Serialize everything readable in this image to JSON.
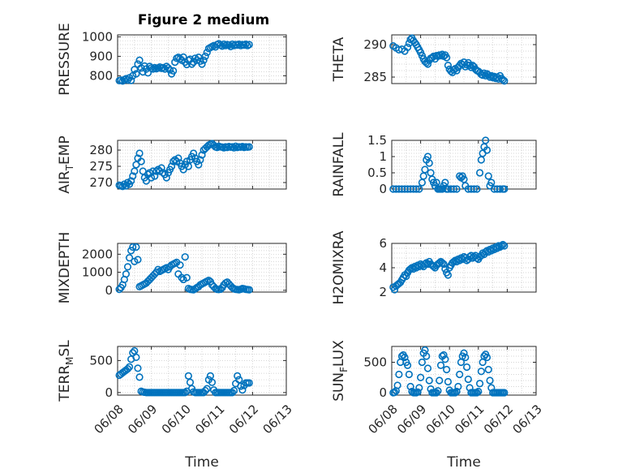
{
  "figure_title": "Figure 2 medium",
  "x_axis_label": "Time",
  "colors": {
    "marker": "#0072BD",
    "axis": "#262626",
    "grid": "#c8c8c8"
  },
  "chart_data": [
    {
      "id": "pressure",
      "type": "scatter",
      "ylabel": "PRESSURE",
      "ylabel_sub": "",
      "ylim": [
        760,
        1010
      ],
      "yticks": [
        800,
        900,
        1000
      ],
      "xticks": [],
      "xlabel": "",
      "x": [
        0.05,
        0.1,
        0.15,
        0.2,
        0.25,
        0.3,
        0.35,
        0.4,
        0.45,
        0.5,
        0.55,
        0.6,
        0.65,
        0.7,
        0.75,
        0.8,
        0.85,
        0.9,
        0.95,
        1.0,
        1.05,
        1.1,
        1.15,
        1.2,
        1.25,
        1.3,
        1.35,
        1.4,
        1.45,
        1.5,
        1.55,
        1.6,
        1.65,
        1.7,
        1.75,
        1.8,
        1.85,
        1.9,
        1.95,
        2.0,
        2.05,
        2.1,
        2.15,
        2.2,
        2.25,
        2.3,
        2.35,
        2.4,
        2.45,
        2.5,
        2.55,
        2.6,
        2.65,
        2.7,
        2.75,
        2.8,
        2.85,
        2.9,
        2.95,
        3.0,
        3.05,
        3.1,
        3.15,
        3.2,
        3.25,
        3.3,
        3.35,
        3.4,
        3.45,
        3.5,
        3.55,
        3.6,
        3.65,
        3.7,
        3.75,
        3.8,
        3.85,
        3.9
      ],
      "y": [
        775,
        778,
        773,
        780,
        785,
        778,
        790,
        776,
        800,
        832,
        810,
        860,
        880,
        840,
        820,
        850,
        835,
        815,
        848,
        840,
        835,
        842,
        836,
        840,
        845,
        838,
        842,
        835,
        848,
        840,
        830,
        810,
        825,
        870,
        890,
        895,
        888,
        880,
        896,
        870,
        858,
        880,
        885,
        860,
        870,
        890,
        880,
        895,
        875,
        860,
        880,
        900,
        920,
        940,
        945,
        950,
        955,
        948,
        960,
        965,
        958,
        952,
        962,
        955,
        960,
        958,
        950,
        962,
        955,
        960,
        958,
        962,
        955,
        960,
        958,
        962,
        955,
        960
      ]
    },
    {
      "id": "theta",
      "type": "scatter",
      "ylabel": "THETA",
      "ylabel_sub": "",
      "ylim": [
        284,
        291.5
      ],
      "yticks": [
        285,
        290
      ],
      "xticks": [],
      "xlabel": "",
      "x": [
        0.05,
        0.15,
        0.25,
        0.35,
        0.45,
        0.55,
        0.6,
        0.65,
        0.7,
        0.75,
        0.8,
        0.85,
        0.9,
        0.95,
        1.0,
        1.05,
        1.1,
        1.15,
        1.2,
        1.25,
        1.3,
        1.35,
        1.4,
        1.45,
        1.5,
        1.55,
        1.6,
        1.65,
        1.7,
        1.75,
        1.8,
        1.85,
        1.9,
        1.95,
        2.0,
        2.05,
        2.1,
        2.15,
        2.2,
        2.25,
        2.3,
        2.35,
        2.4,
        2.45,
        2.5,
        2.55,
        2.6,
        2.65,
        2.7,
        2.75,
        2.8,
        2.85,
        2.9,
        2.95,
        3.0,
        3.05,
        3.1,
        3.15,
        3.2,
        3.25,
        3.3,
        3.35,
        3.4,
        3.45,
        3.5,
        3.55,
        3.6,
        3.65,
        3.7,
        3.75,
        3.8,
        3.85,
        3.9
      ],
      "y": [
        289.8,
        289.5,
        289.2,
        289.3,
        289.0,
        289.6,
        290.2,
        290.8,
        291.0,
        290.6,
        290.3,
        290.0,
        289.6,
        289.2,
        288.8,
        288.3,
        287.8,
        287.4,
        287.2,
        287.0,
        287.6,
        287.9,
        288.0,
        288.2,
        287.8,
        288.3,
        288.2,
        288.4,
        288.3,
        288.5,
        288.2,
        288.4,
        288.0,
        286.8,
        286.2,
        285.9,
        285.7,
        286.1,
        286.3,
        286.0,
        286.5,
        286.8,
        287.1,
        286.9,
        287.3,
        286.6,
        286.9,
        287.2,
        286.8,
        286.5,
        286.8,
        286.6,
        286.2,
        286.0,
        285.9,
        285.7,
        285.4,
        285.3,
        285.6,
        285.2,
        285.5,
        285.3,
        285.0,
        285.2,
        284.9,
        285.1,
        284.8,
        285.0,
        284.7,
        285.2,
        284.8,
        284.6,
        284.4
      ]
    },
    {
      "id": "air_temp",
      "type": "scatter",
      "ylabel": "AIR",
      "ylabel_sub": "T",
      "ylabel_after": "EMP",
      "ylim": [
        268,
        283
      ],
      "yticks": [
        270,
        275,
        280
      ],
      "xticks": [],
      "xlabel": "",
      "x": [
        0.05,
        0.1,
        0.15,
        0.2,
        0.25,
        0.3,
        0.35,
        0.4,
        0.45,
        0.5,
        0.55,
        0.6,
        0.65,
        0.7,
        0.75,
        0.8,
        0.85,
        0.9,
        0.95,
        1.0,
        1.05,
        1.1,
        1.15,
        1.2,
        1.25,
        1.3,
        1.35,
        1.4,
        1.45,
        1.5,
        1.55,
        1.6,
        1.65,
        1.7,
        1.75,
        1.8,
        1.85,
        1.9,
        1.95,
        2.0,
        2.05,
        2.1,
        2.15,
        2.2,
        2.25,
        2.3,
        2.35,
        2.4,
        2.45,
        2.5,
        2.55,
        2.6,
        2.65,
        2.7,
        2.75,
        2.8,
        2.85,
        2.9,
        2.95,
        3.0,
        3.05,
        3.1,
        3.15,
        3.2,
        3.25,
        3.3,
        3.35,
        3.4,
        3.45,
        3.5,
        3.55,
        3.6,
        3.65,
        3.7,
        3.75,
        3.8,
        3.85,
        3.9
      ],
      "y": [
        269.2,
        269.0,
        268.8,
        269.5,
        269.0,
        270.0,
        269.5,
        270.5,
        272.0,
        273.5,
        275.5,
        277.5,
        279.0,
        276.5,
        273.5,
        271.5,
        270.5,
        272.5,
        273.0,
        271.5,
        273.5,
        272.0,
        273.5,
        274.0,
        273.5,
        274.5,
        273.0,
        272.5,
        271.5,
        273.0,
        274.0,
        275.0,
        276.5,
        277.0,
        276.5,
        277.5,
        276.0,
        275.0,
        274.0,
        275.5,
        276.5,
        275.0,
        277.0,
        278.0,
        279.0,
        277.5,
        276.5,
        275.5,
        277.0,
        278.5,
        280.0,
        280.5,
        281.0,
        281.5,
        281.8,
        282.0,
        281.5,
        281.0,
        280.8,
        281.2,
        281.0,
        280.9,
        280.7,
        281.0,
        280.8,
        281.1,
        280.9,
        281.0,
        280.7,
        281.2,
        280.8,
        281.0,
        280.9,
        281.1,
        280.8,
        281.0,
        280.9,
        281.0
      ]
    },
    {
      "id": "rainfall",
      "type": "scatter",
      "ylabel": "RAINFALL",
      "ylabel_sub": "",
      "ylim": [
        0,
        1.5
      ],
      "yticks": [
        0,
        0.5,
        1,
        1.5
      ],
      "ytick_labels": [
        "0",
        "0.5",
        "1",
        "1.5"
      ],
      "xticks": [],
      "xlabel": "",
      "x": [
        0.05,
        0.15,
        0.25,
        0.35,
        0.45,
        0.55,
        0.65,
        0.75,
        0.85,
        0.95,
        1.05,
        1.1,
        1.15,
        1.2,
        1.25,
        1.3,
        1.35,
        1.4,
        1.45,
        1.5,
        1.55,
        1.6,
        1.65,
        1.7,
        1.75,
        1.8,
        1.85,
        1.9,
        1.95,
        2.05,
        2.15,
        2.25,
        2.35,
        2.4,
        2.45,
        2.5,
        2.55,
        2.65,
        2.75,
        2.85,
        2.95,
        3.05,
        3.1,
        3.15,
        3.2,
        3.25,
        3.3,
        3.35,
        3.4,
        3.45,
        3.55,
        3.65,
        3.75,
        3.85,
        3.9
      ],
      "y": [
        0,
        0,
        0,
        0,
        0,
        0,
        0,
        0,
        0,
        0,
        0.2,
        0.4,
        0.6,
        0.9,
        1.0,
        0.8,
        0.5,
        0.3,
        0.2,
        0.1,
        0.2,
        0,
        0,
        0,
        0,
        0.1,
        0.2,
        0,
        0,
        0,
        0,
        0,
        0.4,
        0.35,
        0.4,
        0.3,
        0.1,
        0,
        0,
        0,
        0,
        0.5,
        0.9,
        1.1,
        1.3,
        1.5,
        1.2,
        0.4,
        0.1,
        0.2,
        0,
        0,
        0,
        0,
        0
      ]
    },
    {
      "id": "mixdepth",
      "type": "scatter",
      "ylabel": "MIXDEPTH",
      "ylabel_sub": "",
      "ylim": [
        -100,
        2600
      ],
      "yticks": [
        0,
        1000,
        2000
      ],
      "xticks": [],
      "xlabel": "",
      "x": [
        0.05,
        0.1,
        0.15,
        0.2,
        0.25,
        0.3,
        0.35,
        0.4,
        0.45,
        0.5,
        0.55,
        0.6,
        0.65,
        0.7,
        0.75,
        0.8,
        0.85,
        0.9,
        0.95,
        1.0,
        1.05,
        1.1,
        1.15,
        1.2,
        1.25,
        1.3,
        1.35,
        1.4,
        1.45,
        1.5,
        1.55,
        1.6,
        1.65,
        1.7,
        1.75,
        1.8,
        1.85,
        1.9,
        1.95,
        2.0,
        2.05,
        2.1,
        2.15,
        2.2,
        2.25,
        2.3,
        2.35,
        2.4,
        2.45,
        2.5,
        2.55,
        2.6,
        2.65,
        2.7,
        2.75,
        2.8,
        2.85,
        2.9,
        2.95,
        3.0,
        3.05,
        3.1,
        3.15,
        3.2,
        3.25,
        3.3,
        3.35,
        3.4,
        3.45,
        3.5,
        3.55,
        3.6,
        3.65,
        3.7,
        3.75,
        3.8,
        3.85,
        3.9
      ],
      "y": [
        50,
        150,
        300,
        600,
        900,
        1300,
        1800,
        2200,
        2400,
        1600,
        2400,
        1700,
        200,
        250,
        300,
        350,
        400,
        500,
        600,
        700,
        800,
        900,
        1000,
        1150,
        1050,
        1100,
        1150,
        1200,
        1250,
        1150,
        1300,
        1400,
        1450,
        1500,
        1550,
        900,
        1400,
        700,
        600,
        1850,
        700,
        100,
        50,
        40,
        30,
        80,
        150,
        200,
        300,
        350,
        400,
        450,
        500,
        550,
        480,
        300,
        200,
        100,
        50,
        40,
        60,
        150,
        300,
        400,
        450,
        350,
        250,
        150,
        80,
        50,
        40,
        30,
        60,
        100,
        80,
        50,
        40,
        30
      ]
    },
    {
      "id": "h2omixra",
      "type": "scatter",
      "ylabel": "H2OMIXRA",
      "ylabel_sub": "",
      "ylim": [
        2,
        6
      ],
      "yticks": [
        2,
        4,
        6
      ],
      "xticks": [],
      "xlabel": "",
      "x": [
        0.05,
        0.1,
        0.15,
        0.2,
        0.25,
        0.3,
        0.35,
        0.4,
        0.45,
        0.5,
        0.55,
        0.6,
        0.65,
        0.7,
        0.75,
        0.8,
        0.85,
        0.9,
        0.95,
        1.0,
        1.05,
        1.1,
        1.15,
        1.2,
        1.25,
        1.3,
        1.35,
        1.4,
        1.45,
        1.5,
        1.55,
        1.6,
        1.65,
        1.7,
        1.75,
        1.8,
        1.85,
        1.9,
        1.95,
        2.0,
        2.05,
        2.1,
        2.15,
        2.2,
        2.25,
        2.3,
        2.35,
        2.4,
        2.45,
        2.5,
        2.55,
        2.6,
        2.65,
        2.7,
        2.75,
        2.8,
        2.85,
        2.9,
        2.95,
        3.0,
        3.05,
        3.1,
        3.15,
        3.2,
        3.25,
        3.3,
        3.35,
        3.4,
        3.45,
        3.5,
        3.55,
        3.6,
        3.65,
        3.7,
        3.75,
        3.8,
        3.85,
        3.9
      ],
      "y": [
        2.4,
        2.2,
        2.5,
        2.6,
        2.7,
        2.8,
        3.0,
        3.2,
        3.4,
        3.3,
        3.6,
        3.8,
        3.9,
        4.0,
        3.9,
        4.1,
        4.0,
        4.2,
        4.1,
        4.3,
        4.2,
        4.1,
        4.3,
        4.4,
        4.3,
        4.5,
        4.3,
        4.2,
        4.1,
        4.0,
        4.2,
        4.3,
        4.4,
        4.5,
        4.4,
        4.3,
        3.9,
        3.6,
        3.4,
        4.0,
        4.2,
        4.4,
        4.5,
        4.6,
        4.5,
        4.7,
        4.6,
        4.8,
        4.7,
        4.9,
        4.8,
        4.6,
        4.7,
        4.9,
        5.0,
        4.8,
        4.9,
        5.0,
        4.8,
        4.7,
        4.9,
        5.0,
        5.2,
        5.1,
        5.3,
        5.4,
        5.3,
        5.5,
        5.4,
        5.6,
        5.5,
        5.7,
        5.6,
        5.8,
        5.7,
        5.8,
        5.9,
        5.8
      ]
    },
    {
      "id": "terr_msl",
      "type": "scatter",
      "ylabel": "TERR",
      "ylabel_sub": "M",
      "ylabel_after": "SL",
      "ylim": [
        -40,
        720
      ],
      "yticks": [
        0,
        500
      ],
      "xticks": [
        0,
        1,
        2,
        3,
        4,
        5
      ],
      "xtick_labels": [
        "06/08",
        "06/09",
        "06/10",
        "06/11",
        "06/12",
        "06/13"
      ],
      "xlabel": "Time",
      "x": [
        0.05,
        0.1,
        0.15,
        0.2,
        0.25,
        0.3,
        0.35,
        0.4,
        0.45,
        0.5,
        0.55,
        0.6,
        0.65,
        0.7,
        0.75,
        0.8,
        0.85,
        0.9,
        0.95,
        1.0,
        1.05,
        1.1,
        1.15,
        1.2,
        1.25,
        1.3,
        1.35,
        1.4,
        1.45,
        1.5,
        1.55,
        1.6,
        1.65,
        1.7,
        1.75,
        1.8,
        1.85,
        1.9,
        1.95,
        2.0,
        2.05,
        2.1,
        2.15,
        2.2,
        2.25,
        2.3,
        2.35,
        2.4,
        2.45,
        2.5,
        2.55,
        2.6,
        2.65,
        2.7,
        2.75,
        2.8,
        2.85,
        2.9,
        2.95,
        3.0,
        3.05,
        3.1,
        3.15,
        3.2,
        3.25,
        3.3,
        3.35,
        3.4,
        3.45,
        3.5,
        3.55,
        3.6,
        3.65,
        3.7,
        3.75,
        3.8,
        3.85,
        3.9
      ],
      "y": [
        270,
        290,
        310,
        330,
        350,
        370,
        400,
        520,
        620,
        650,
        550,
        380,
        240,
        20,
        10,
        5,
        0,
        0,
        0,
        0,
        0,
        0,
        0,
        0,
        0,
        0,
        0,
        0,
        0,
        0,
        0,
        0,
        0,
        0,
        0,
        0,
        0,
        0,
        0,
        0,
        20,
        260,
        160,
        60,
        10,
        0,
        0,
        0,
        0,
        0,
        0,
        30,
        60,
        200,
        260,
        160,
        40,
        0,
        0,
        0,
        0,
        0,
        0,
        0,
        0,
        0,
        0,
        0,
        30,
        140,
        260,
        200,
        100,
        40,
        110,
        150,
        150,
        150
      ]
    },
    {
      "id": "sun_flux",
      "type": "scatter",
      "ylabel": "SUN",
      "ylabel_sub": "F",
      "ylabel_after": "LUX",
      "ylim": [
        -40,
        760
      ],
      "yticks": [
        0,
        500
      ],
      "xticks": [
        0,
        1,
        2,
        3,
        4,
        5
      ],
      "xtick_labels": [
        "06/08",
        "06/09",
        "06/10",
        "06/11",
        "06/12",
        "06/13"
      ],
      "xlabel": "Time",
      "x": [
        0.05,
        0.1,
        0.15,
        0.2,
        0.25,
        0.3,
        0.35,
        0.4,
        0.45,
        0.5,
        0.55,
        0.6,
        0.65,
        0.7,
        0.75,
        0.8,
        0.85,
        0.9,
        0.95,
        1.0,
        1.05,
        1.1,
        1.15,
        1.2,
        1.25,
        1.3,
        1.35,
        1.4,
        1.45,
        1.5,
        1.55,
        1.6,
        1.65,
        1.7,
        1.75,
        1.8,
        1.85,
        1.9,
        1.95,
        2.0,
        2.05,
        2.1,
        2.15,
        2.2,
        2.25,
        2.3,
        2.35,
        2.4,
        2.45,
        2.5,
        2.55,
        2.6,
        2.65,
        2.7,
        2.75,
        2.8,
        2.85,
        2.9,
        2.95,
        3.0,
        3.05,
        3.1,
        3.15,
        3.2,
        3.25,
        3.3,
        3.35,
        3.4,
        3.45,
        3.5,
        3.55,
        3.6,
        3.65,
        3.7,
        3.75,
        3.8,
        3.85,
        3.9
      ],
      "y": [
        0,
        5,
        30,
        120,
        300,
        500,
        600,
        620,
        580,
        500,
        450,
        300,
        100,
        20,
        0,
        0,
        0,
        10,
        80,
        250,
        500,
        650,
        700,
        600,
        400,
        200,
        60,
        0,
        0,
        0,
        0,
        30,
        200,
        450,
        600,
        620,
        550,
        380,
        180,
        40,
        0,
        0,
        0,
        0,
        20,
        100,
        300,
        500,
        600,
        650,
        580,
        420,
        220,
        80,
        0,
        0,
        0,
        0,
        0,
        20,
        150,
        350,
        500,
        600,
        630,
        580,
        380,
        200,
        80,
        0,
        0,
        0,
        0,
        0,
        0,
        0,
        0,
        0
      ]
    }
  ]
}
